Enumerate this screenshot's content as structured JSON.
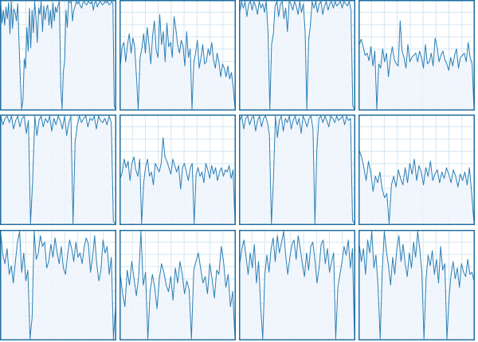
{
  "colors": {
    "line": "#2a7fb5",
    "fill": "#eef5fb",
    "grid": "#d3e6f3",
    "frame": "#1f6f9f"
  },
  "chart_data": [
    {
      "type": "area",
      "panel": 1,
      "ylim": [
        0,
        100
      ],
      "values": [
        98,
        80,
        92,
        78,
        95,
        84,
        99,
        70,
        100,
        75,
        93,
        90,
        82,
        98,
        62,
        28,
        0,
        8,
        47,
        38,
        76,
        54,
        94,
        57,
        92,
        71,
        100,
        84,
        62,
        94,
        88,
        100,
        72,
        96,
        83,
        93,
        97,
        78,
        92,
        75,
        99,
        82,
        95,
        90,
        97,
        100,
        20,
        0,
        35,
        45,
        92,
        76,
        100,
        99,
        100,
        82,
        92,
        96,
        100,
        98,
        100,
        96,
        94,
        99,
        100,
        98,
        97,
        100,
        99,
        98,
        100,
        92,
        99,
        100,
        95,
        98,
        100,
        99,
        97,
        98,
        100,
        99,
        100,
        97,
        98,
        100,
        99,
        3,
        0
      ]
    },
    {
      "type": "area",
      "panel": 2,
      "ylim": [
        0,
        100
      ],
      "values": [
        40,
        58,
        62,
        44,
        60,
        70,
        52,
        66,
        58,
        30,
        0,
        48,
        56,
        70,
        52,
        76,
        60,
        42,
        68,
        82,
        55,
        48,
        88,
        60,
        72,
        44,
        80,
        58,
        62,
        48,
        86,
        74,
        60,
        52,
        64,
        58,
        40,
        72,
        48,
        56,
        0,
        44,
        52,
        64,
        38,
        48,
        60,
        42,
        44,
        56,
        50,
        62,
        46,
        38,
        52,
        44,
        30,
        42,
        38,
        30,
        40,
        28,
        34,
        20,
        0
      ]
    },
    {
      "type": "area",
      "panel": 3,
      "ylim": [
        0,
        100
      ],
      "values": [
        90,
        100,
        94,
        100,
        86,
        98,
        100,
        92,
        100,
        96,
        88,
        100,
        94,
        98,
        90,
        100,
        72,
        0,
        60,
        70,
        96,
        100,
        86,
        98,
        100,
        84,
        94,
        72,
        100,
        98,
        92,
        100,
        96,
        88,
        100,
        90,
        98,
        72,
        0,
        64,
        78,
        100,
        94,
        100,
        90,
        98,
        100,
        88,
        96,
        100,
        92,
        98,
        100,
        94,
        100,
        96,
        98,
        100,
        94,
        100,
        98,
        96,
        100,
        92,
        3,
        0
      ]
    },
    {
      "type": "area",
      "panel": 4,
      "ylim": [
        0,
        100
      ],
      "values": [
        60,
        65,
        58,
        50,
        52,
        45,
        58,
        40,
        54,
        0,
        42,
        38,
        56,
        44,
        52,
        30,
        48,
        58,
        46,
        42,
        40,
        82,
        54,
        48,
        38,
        60,
        44,
        48,
        50,
        52,
        44,
        54,
        48,
        38,
        60,
        42,
        44,
        52,
        40,
        66,
        58,
        44,
        50,
        54,
        46,
        42,
        36,
        48,
        40,
        50,
        56,
        38,
        48,
        50,
        52,
        44,
        62,
        48,
        42,
        0
      ]
    },
    {
      "type": "area",
      "panel": 5,
      "ylim": [
        0,
        100
      ],
      "values": [
        100,
        92,
        98,
        100,
        94,
        100,
        88,
        96,
        100,
        90,
        98,
        100,
        84,
        96,
        0,
        40,
        100,
        82,
        96,
        100,
        90,
        98,
        94,
        100,
        86,
        98,
        92,
        100,
        96,
        88,
        100,
        82,
        94,
        100,
        0,
        76,
        92,
        100,
        94,
        98,
        100,
        90,
        98,
        96,
        100,
        88,
        100,
        96,
        94,
        98,
        92,
        100,
        94,
        2,
        0
      ]
    },
    {
      "type": "area",
      "panel": 6,
      "ylim": [
        0,
        100
      ],
      "values": [
        42,
        48,
        60,
        52,
        58,
        40,
        56,
        62,
        50,
        44,
        60,
        0,
        38,
        52,
        60,
        44,
        48,
        36,
        56,
        52,
        48,
        56,
        80,
        62,
        58,
        52,
        46,
        60,
        54,
        48,
        54,
        32,
        52,
        56,
        48,
        40,
        52,
        56,
        0,
        46,
        52,
        44,
        48,
        38,
        56,
        50,
        42,
        54,
        46,
        52,
        40,
        48,
        52,
        44,
        50,
        48,
        54,
        42,
        50,
        0
      ]
    },
    {
      "type": "area",
      "panel": 7,
      "ylim": [
        0,
        100
      ],
      "values": [
        96,
        100,
        88,
        98,
        100,
        92,
        98,
        100,
        86,
        96,
        100,
        90,
        98,
        100,
        94,
        82,
        0,
        40,
        100,
        80,
        96,
        100,
        86,
        98,
        94,
        100,
        88,
        96,
        100,
        92,
        98,
        84,
        100,
        96,
        90,
        98,
        100,
        88,
        0,
        70,
        98,
        100,
        94,
        100,
        96,
        90,
        100,
        98,
        94,
        100,
        96,
        98,
        100,
        92,
        100,
        96,
        98,
        3,
        0
      ]
    },
    {
      "type": "area",
      "panel": 8,
      "ylim": [
        0,
        100
      ],
      "values": [
        68,
        62,
        52,
        40,
        58,
        48,
        30,
        44,
        38,
        48,
        32,
        24,
        28,
        0,
        36,
        44,
        34,
        50,
        42,
        36,
        52,
        38,
        56,
        46,
        60,
        40,
        54,
        48,
        36,
        52,
        44,
        58,
        40,
        46,
        50,
        38,
        48,
        42,
        52,
        46,
        38,
        50,
        44,
        34,
        46,
        40,
        48,
        36,
        52,
        28,
        0
      ]
    },
    {
      "type": "area",
      "panel": 9,
      "ylim": [
        0,
        100
      ],
      "values": [
        98,
        78,
        70,
        84,
        60,
        68,
        52,
        72,
        90,
        100,
        62,
        80,
        54,
        64,
        0,
        20,
        100,
        74,
        80,
        96,
        86,
        90,
        66,
        72,
        88,
        76,
        94,
        80,
        70,
        86,
        66,
        60,
        78,
        92,
        84,
        72,
        90,
        76,
        80,
        70,
        86,
        94,
        88,
        62,
        76,
        96,
        70,
        54,
        64,
        92,
        80,
        86,
        60,
        76,
        0,
        30
      ]
    },
    {
      "type": "area",
      "panel": 10,
      "ylim": [
        0,
        100
      ],
      "values": [
        60,
        42,
        30,
        64,
        50,
        72,
        56,
        40,
        58,
        100,
        50,
        62,
        0,
        44,
        60,
        48,
        28,
        56,
        70,
        62,
        50,
        44,
        58,
        36,
        66,
        52,
        72,
        60,
        42,
        54,
        46,
        0,
        64,
        72,
        80,
        66,
        52,
        58,
        42,
        70,
        56,
        38,
        64,
        60,
        86,
        72,
        48,
        60,
        30,
        44,
        0
      ]
    },
    {
      "type": "area",
      "panel": 11,
      "ylim": [
        0,
        100
      ],
      "values": [
        70,
        84,
        92,
        76,
        60,
        80,
        66,
        88,
        52,
        72,
        30,
        0,
        60,
        78,
        62,
        84,
        94,
        72,
        96,
        80,
        90,
        100,
        78,
        60,
        76,
        88,
        92,
        74,
        96,
        84,
        70,
        58,
        80,
        64,
        86,
        90,
        74,
        52,
        66,
        88,
        92,
        70,
        84,
        62,
        72,
        80,
        0,
        48,
        60,
        72,
        86,
        78,
        92,
        66,
        84,
        0
      ]
    },
    {
      "type": "area",
      "panel": 12,
      "ylim": [
        0,
        100
      ],
      "values": [
        88,
        72,
        84,
        60,
        92,
        80,
        100,
        66,
        78,
        48,
        0,
        64,
        100,
        82,
        68,
        50,
        76,
        60,
        84,
        96,
        72,
        88,
        70,
        58,
        80,
        66,
        90,
        76,
        100,
        84,
        62,
        0,
        56,
        78,
        68,
        82,
        60,
        74,
        52,
        86,
        64,
        70,
        0,
        38,
        60,
        72,
        56,
        66,
        48,
        70,
        62,
        58,
        74,
        60,
        62,
        54
      ]
    }
  ]
}
